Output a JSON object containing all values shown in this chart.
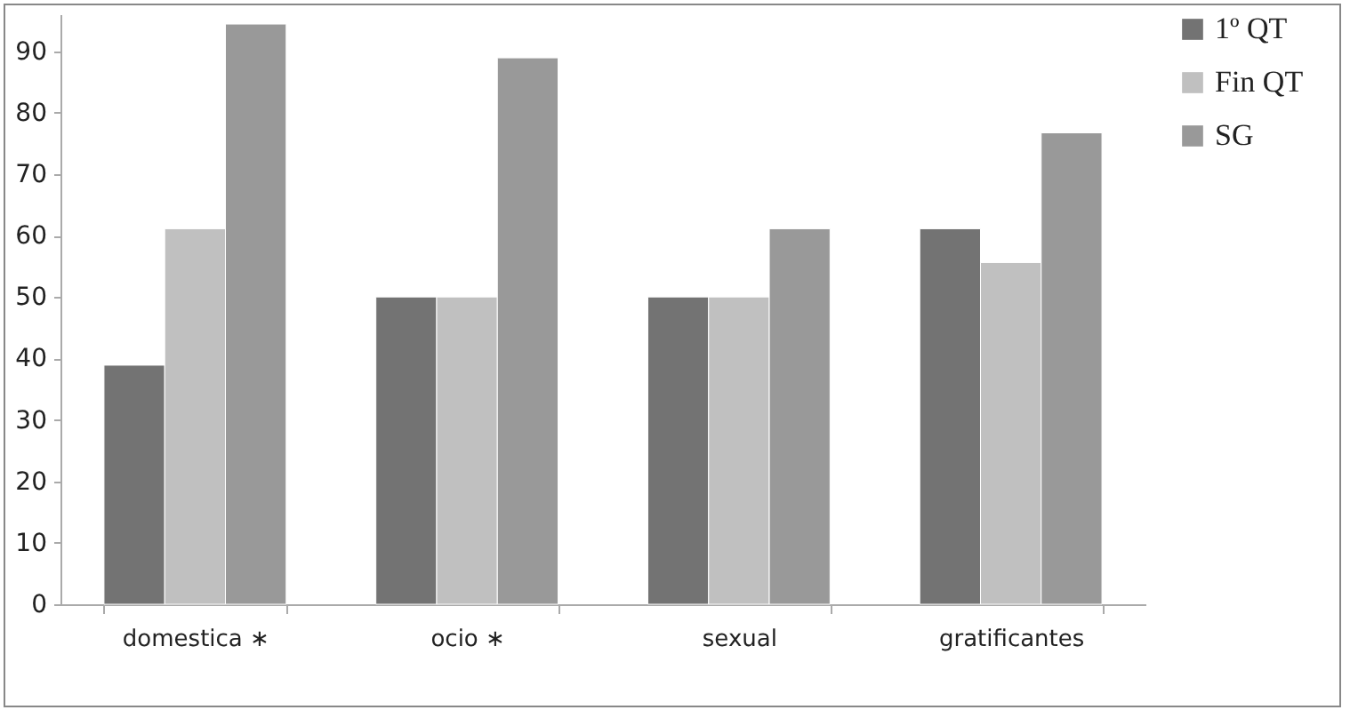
{
  "chart_data": {
    "type": "bar",
    "categories": [
      "domestica ∗",
      "ocio ∗",
      "sexual",
      "gratificantes"
    ],
    "series": [
      {
        "name": "1º QT",
        "color": "#737373",
        "values": [
          38.9,
          50,
          50,
          61.1
        ]
      },
      {
        "name": "Fin QT",
        "color": "#c0c0c0",
        "values": [
          61.1,
          50,
          50,
          55.6
        ]
      },
      {
        "name": "SG",
        "color": "#999999",
        "values": [
          94.4,
          88.9,
          61.1,
          76.7
        ]
      }
    ],
    "ylim": [
      0,
      96
    ],
    "yticks": [
      0,
      10,
      20,
      30,
      40,
      50,
      60,
      70,
      80,
      90
    ],
    "grid": false,
    "legend": "right"
  }
}
